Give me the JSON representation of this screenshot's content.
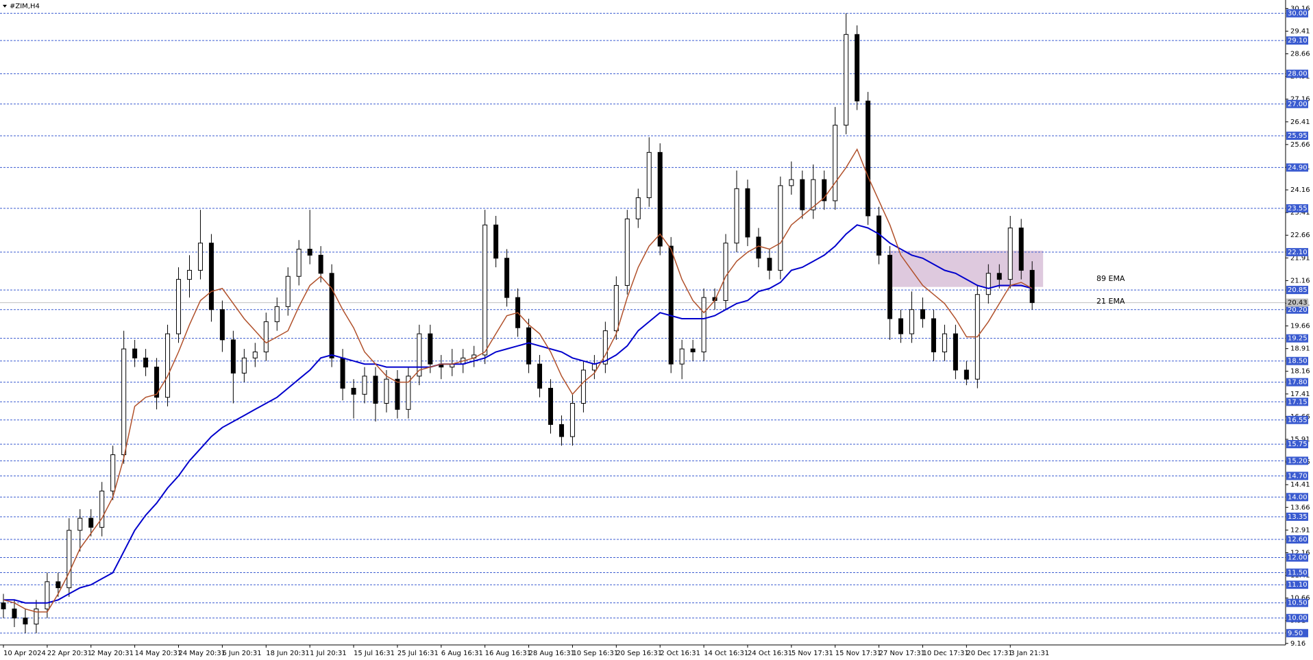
{
  "chart_data": {
    "type": "candlestick",
    "title": "#ZIM,H4",
    "categories": [
      "10 Apr 2024",
      null,
      null,
      null,
      "22 Apr 20:31",
      null,
      null,
      null,
      "2 May 20:31",
      null,
      null,
      null,
      "14 May 20:31",
      null,
      null,
      null,
      "24 May 20:31",
      null,
      null,
      null,
      "6 Jun 20:31",
      null,
      null,
      null,
      "18 Jun 20:31",
      null,
      null,
      null,
      "1 Jul 20:31",
      null,
      null,
      null,
      "15 Jul 16:31",
      null,
      null,
      null,
      "25 Jul 16:31",
      null,
      null,
      null,
      "6 Aug 16:31",
      null,
      null,
      null,
      "16 Aug 16:31",
      null,
      null,
      null,
      "28 Aug 16:31",
      null,
      null,
      null,
      "10 Sep 16:31",
      null,
      null,
      null,
      "20 Sep 16:31",
      null,
      null,
      null,
      "2 Oct 16:31",
      null,
      null,
      null,
      "14 Oct 16:31",
      null,
      null,
      null,
      "24 Oct 16:31",
      null,
      null,
      null,
      "5 Nov 17:31",
      null,
      null,
      null,
      "15 Nov 17:31",
      null,
      null,
      null,
      "27 Nov 17:31",
      null,
      null,
      null,
      "10 Dec 17:31",
      null,
      null,
      null,
      "20 Dec 17:31",
      null,
      null,
      null,
      "3 Jan 21:31",
      null,
      null
    ],
    "open": [
      10.5,
      10.3,
      10.0,
      9.8,
      10.3,
      11.2,
      11.0,
      12.9,
      13.3,
      13.0,
      14.2,
      15.4,
      18.9,
      18.6,
      18.3,
      17.3,
      19.4,
      21.2,
      21.5,
      22.4,
      20.2,
      19.2,
      18.1,
      18.6,
      18.8,
      19.8,
      20.3,
      21.3,
      22.2,
      22.0,
      21.4,
      18.6,
      17.6,
      17.4,
      18.0,
      17.1,
      17.9,
      16.9,
      18.0,
      19.4,
      18.4,
      18.3,
      18.4,
      18.6,
      18.7,
      23.0,
      21.9,
      20.6,
      19.6,
      18.4,
      17.6,
      16.4,
      16.0,
      17.1,
      18.2,
      18.4,
      19.5,
      21.0,
      23.2,
      23.9,
      25.4,
      22.3,
      18.4,
      18.9,
      18.8,
      20.6,
      20.5,
      22.4,
      24.2,
      22.6,
      21.9,
      21.5,
      24.3,
      24.5,
      23.5,
      24.5,
      23.8,
      26.3,
      29.3,
      27.1,
      23.3,
      22.0,
      19.9,
      19.4,
      20.2,
      19.9,
      18.8,
      19.4,
      18.2,
      17.9,
      20.7,
      21.4,
      21.2,
      22.9,
      21.5
    ],
    "high": [
      10.8,
      10.6,
      10.3,
      10.6,
      11.5,
      11.5,
      13.3,
      13.6,
      13.6,
      14.5,
      15.7,
      19.5,
      19.2,
      18.9,
      18.6,
      19.7,
      21.6,
      22.0,
      23.5,
      22.7,
      20.5,
      19.5,
      18.9,
      19.1,
      20.1,
      20.6,
      21.6,
      22.5,
      23.5,
      22.3,
      21.7,
      18.9,
      17.9,
      18.3,
      18.3,
      18.2,
      18.2,
      18.3,
      19.7,
      19.7,
      18.7,
      18.9,
      18.9,
      19.0,
      23.5,
      23.3,
      22.2,
      20.9,
      19.9,
      18.7,
      17.9,
      16.7,
      17.4,
      18.5,
      18.7,
      19.8,
      21.3,
      23.5,
      24.2,
      25.9,
      25.7,
      22.6,
      19.2,
      19.2,
      20.9,
      20.9,
      22.7,
      24.8,
      24.5,
      22.9,
      22.2,
      24.6,
      25.1,
      24.8,
      25.0,
      24.8,
      26.9,
      30.0,
      29.6,
      27.4,
      23.6,
      22.3,
      20.2,
      20.8,
      20.6,
      20.2,
      19.7,
      19.7,
      18.5,
      21.0,
      21.7,
      21.7,
      23.3,
      23.2,
      21.8
    ],
    "low": [
      10.0,
      9.7,
      9.5,
      9.5,
      10.0,
      10.7,
      10.7,
      12.2,
      12.7,
      12.7,
      13.9,
      15.1,
      18.3,
      18.0,
      16.9,
      17.0,
      19.1,
      20.6,
      21.2,
      19.8,
      18.8,
      17.1,
      17.8,
      18.3,
      18.5,
      19.5,
      20.0,
      21.0,
      21.7,
      21.1,
      18.3,
      17.2,
      16.6,
      17.1,
      16.5,
      16.8,
      16.6,
      16.6,
      17.7,
      18.1,
      17.9,
      18.0,
      18.1,
      18.3,
      18.4,
      21.6,
      20.3,
      19.3,
      18.1,
      17.3,
      16.1,
      15.7,
      15.7,
      16.8,
      17.9,
      18.1,
      19.2,
      20.7,
      22.9,
      23.6,
      22.0,
      18.1,
      17.9,
      18.5,
      18.5,
      20.2,
      20.2,
      22.1,
      22.3,
      21.6,
      21.2,
      21.2,
      24.0,
      23.2,
      23.2,
      23.5,
      23.5,
      26.0,
      26.8,
      23.0,
      21.7,
      19.2,
      19.1,
      19.1,
      19.6,
      18.5,
      18.5,
      17.9,
      17.7,
      17.6,
      20.4,
      20.9,
      20.9,
      21.2,
      20.2
    ],
    "close": [
      10.3,
      10.0,
      9.8,
      10.3,
      11.2,
      11.0,
      12.9,
      13.3,
      13.0,
      14.2,
      15.4,
      18.9,
      18.6,
      18.3,
      17.3,
      19.4,
      21.2,
      21.5,
      22.4,
      20.2,
      19.2,
      18.1,
      18.6,
      18.8,
      19.8,
      20.3,
      21.3,
      22.2,
      22.0,
      21.4,
      18.6,
      17.6,
      17.4,
      18.0,
      17.1,
      17.9,
      16.9,
      18.0,
      19.4,
      18.4,
      18.3,
      18.4,
      18.6,
      18.7,
      23.0,
      21.9,
      20.6,
      19.6,
      18.4,
      17.6,
      16.4,
      16.0,
      17.1,
      18.2,
      18.4,
      19.5,
      21.0,
      23.2,
      23.9,
      25.4,
      22.3,
      18.4,
      18.9,
      18.8,
      20.6,
      20.5,
      22.4,
      24.2,
      22.6,
      21.9,
      21.5,
      24.3,
      24.5,
      23.5,
      24.5,
      23.8,
      26.3,
      29.3,
      27.1,
      23.3,
      22.0,
      19.9,
      19.4,
      20.2,
      19.9,
      18.8,
      19.4,
      18.2,
      17.9,
      20.7,
      21.4,
      21.2,
      22.9,
      21.5,
      20.43
    ],
    "lines": [
      {
        "name": "89 EMA",
        "color": "#0000cc",
        "values": [
          10.6,
          10.6,
          10.5,
          10.5,
          10.5,
          10.6,
          10.8,
          11.0,
          11.1,
          11.3,
          11.5,
          12.2,
          12.9,
          13.4,
          13.8,
          14.3,
          14.7,
          15.2,
          15.6,
          16.0,
          16.3,
          16.5,
          16.7,
          16.9,
          17.1,
          17.3,
          17.6,
          17.9,
          18.2,
          18.6,
          18.7,
          18.6,
          18.5,
          18.4,
          18.4,
          18.3,
          18.3,
          18.3,
          18.3,
          18.3,
          18.4,
          18.4,
          18.4,
          18.5,
          18.6,
          18.8,
          18.9,
          19.0,
          19.1,
          19.0,
          18.9,
          18.8,
          18.6,
          18.5,
          18.4,
          18.5,
          18.7,
          19.0,
          19.5,
          19.8,
          20.1,
          20.0,
          19.9,
          19.9,
          19.9,
          20.0,
          20.2,
          20.4,
          20.5,
          20.8,
          20.9,
          21.1,
          21.5,
          21.6,
          21.8,
          22.0,
          22.3,
          22.7,
          23.0,
          22.9,
          22.7,
          22.4,
          22.2,
          22.0,
          21.9,
          21.7,
          21.5,
          21.4,
          21.2,
          21.0,
          20.9,
          21.0,
          21.0,
          21.0,
          20.9
        ]
      },
      {
        "name": "21 EMA",
        "color": "#b0502a",
        "values": [
          10.6,
          10.5,
          10.3,
          10.2,
          10.2,
          10.8,
          11.5,
          12.3,
          12.8,
          13.3,
          14.0,
          15.3,
          17.0,
          17.3,
          17.4,
          18.0,
          18.8,
          19.7,
          20.5,
          20.8,
          20.9,
          20.4,
          19.9,
          19.5,
          19.1,
          19.3,
          19.5,
          20.3,
          21.0,
          21.3,
          20.9,
          20.2,
          19.6,
          18.8,
          18.4,
          18.0,
          17.8,
          17.8,
          18.2,
          18.3,
          18.4,
          18.4,
          18.5,
          18.6,
          18.8,
          19.4,
          20.0,
          20.1,
          19.7,
          19.4,
          18.8,
          18.0,
          17.4,
          17.8,
          18.1,
          18.7,
          19.4,
          20.6,
          21.6,
          22.3,
          22.7,
          22.2,
          21.2,
          20.5,
          20.1,
          20.5,
          21.3,
          21.8,
          22.1,
          22.3,
          22.2,
          22.4,
          23.0,
          23.3,
          23.6,
          23.9,
          24.4,
          24.9,
          25.5,
          24.6,
          23.8,
          23.0,
          22.0,
          21.5,
          21.0,
          20.7,
          20.4,
          19.9,
          19.3,
          19.3,
          19.8,
          20.4,
          21.0,
          21.1,
          20.9
        ]
      }
    ],
    "levels": [
      {
        "value": 30,
        "label": "30.00"
      },
      {
        "value": 29.1,
        "label": "29.10"
      },
      {
        "value": 28,
        "label": "28.00"
      },
      {
        "value": 27,
        "label": "27.00"
      },
      25.95,
      {
        "value": 24.9,
        "label": "24.90"
      },
      23.55,
      {
        "value": 22.1,
        "label": "22.10"
      },
      20.85,
      {
        "value": 20.2,
        "label": "20.20"
      },
      19.25,
      {
        "value": 18.5,
        "label": "18.50"
      },
      {
        "value": 17.8,
        "label": "17.80"
      },
      17.15,
      16.55,
      15.75,
      {
        "value": 15.2,
        "label": "15.20"
      },
      {
        "value": 14.7,
        "label": "14.70"
      },
      {
        "value": 14,
        "label": "14.00"
      },
      13.35,
      {
        "value": 12.6,
        "label": "12.60"
      },
      {
        "value": 12,
        "label": "12.00"
      },
      {
        "value": 11.5,
        "label": "11.50"
      },
      {
        "value": 11.1,
        "label": "11.10"
      },
      {
        "value": 10.5,
        "label": "10.50"
      },
      {
        "value": 10,
        "label": "10.00"
      },
      {
        "value": 9.5,
        "label": "9.50"
      }
    ],
    "level_color": "#3a5bd0",
    "current_price": 20.43,
    "zone": {
      "color": "#d8bfd8",
      "ylim": [
        20.95,
        22.15
      ],
      "start": 81,
      "end": 95
    },
    "ylim": [
      9.11,
      30.44
    ],
    "yticks": [
      9.16,
      9.91,
      10.66,
      11.41,
      12.16,
      12.91,
      13.66,
      14.41,
      15.16,
      15.91,
      16.66,
      17.41,
      18.16,
      18.91,
      19.66,
      20.41,
      21.16,
      21.91,
      22.66,
      23.41,
      24.16,
      24.91,
      25.66,
      26.41,
      27.16,
      27.91,
      28.66,
      29.41,
      30.16
    ]
  }
}
